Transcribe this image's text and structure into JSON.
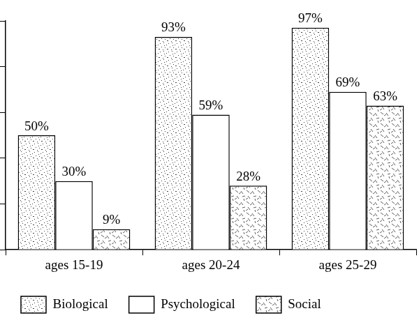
{
  "chart_data": {
    "type": "bar",
    "categories": [
      "ages 15-19",
      "ages 20-24",
      "ages 25-29"
    ],
    "series": [
      {
        "name": "Biological",
        "color": "#ffffff",
        "values": [
          50,
          93,
          97
        ],
        "value_labels": [
          "50%",
          "93%",
          "97%"
        ]
      },
      {
        "name": "Psychological",
        "color": "#ffffff",
        "values": [
          30,
          59,
          69
        ],
        "value_labels": [
          "30%",
          "59%",
          "69%"
        ]
      },
      {
        "name": "Social",
        "color": "#ffffff",
        "values": [
          9,
          28,
          63
        ],
        "value_labels": [
          "9%",
          "28%",
          "63%"
        ]
      }
    ],
    "ylim": [
      0,
      100
    ],
    "yticks": [
      0,
      20,
      40,
      60,
      80,
      100
    ],
    "grid": false,
    "legend": "bottom",
    "data_labels": true,
    "tick_labels": "x"
  }
}
